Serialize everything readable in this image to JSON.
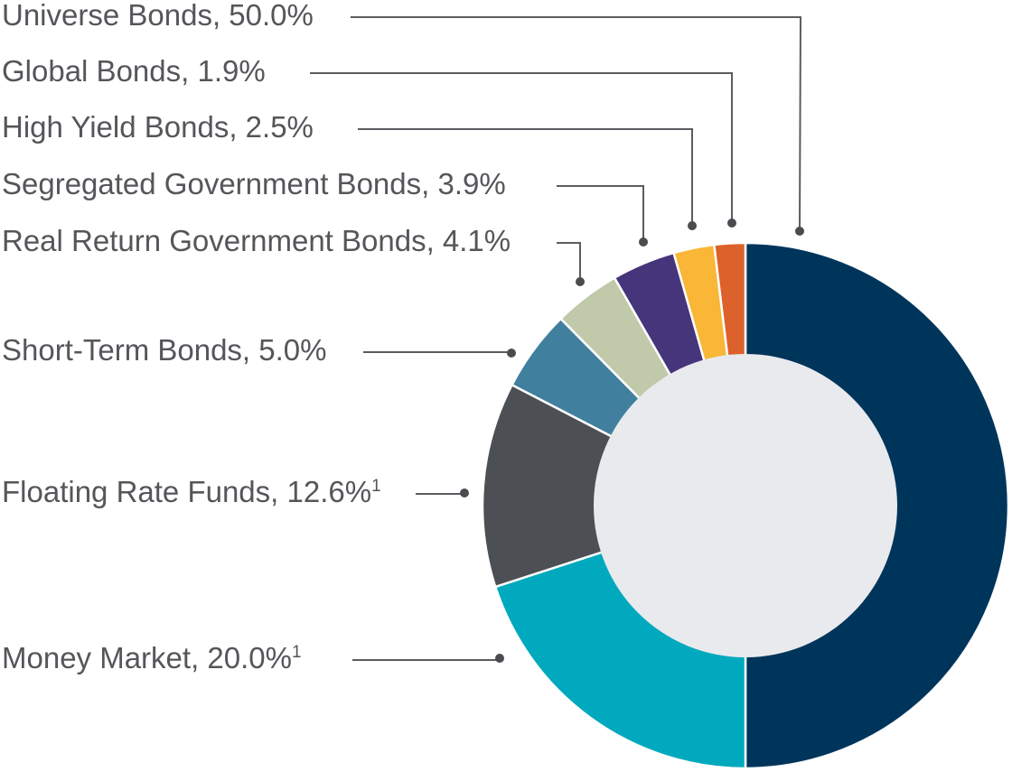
{
  "chart_data": {
    "type": "pie",
    "title": "",
    "donut": true,
    "hole_color": "#e9eaee",
    "slices": [
      {
        "name": "Universe Bonds",
        "value": 50.0,
        "label": "Universe Bonds, 50.0%",
        "note": "",
        "color": "#00355b"
      },
      {
        "name": "Money Market",
        "value": 20.0,
        "label": "Money Market, 20.0%",
        "note": "1",
        "color": "#00a9bd"
      },
      {
        "name": "Floating Rate Funds",
        "value": 12.6,
        "label": "Floating Rate Funds, 12.6%",
        "note": "1",
        "color": "#4c4f53"
      },
      {
        "name": "Short-Term Bonds",
        "value": 5.0,
        "label": "Short-Term Bonds, 5.0%",
        "note": "",
        "color": "#417f9e"
      },
      {
        "name": "Real Return Government Bonds",
        "value": 4.1,
        "label": "Real Return Government Bonds, 4.1%",
        "note": "",
        "color": "#c1c9ab"
      },
      {
        "name": "Segregated Government Bonds",
        "value": 3.9,
        "label": "Segregated Government Bonds, 3.9%",
        "note": "",
        "color": "#46357b"
      },
      {
        "name": "High Yield Bonds",
        "value": 2.5,
        "label": "High Yield Bonds, 2.5%",
        "note": "",
        "color": "#f9b637"
      },
      {
        "name": "Global Bonds",
        "value": 1.9,
        "label": "Global Bonds, 1.9%",
        "note": "",
        "color": "#dd612a"
      }
    ]
  }
}
